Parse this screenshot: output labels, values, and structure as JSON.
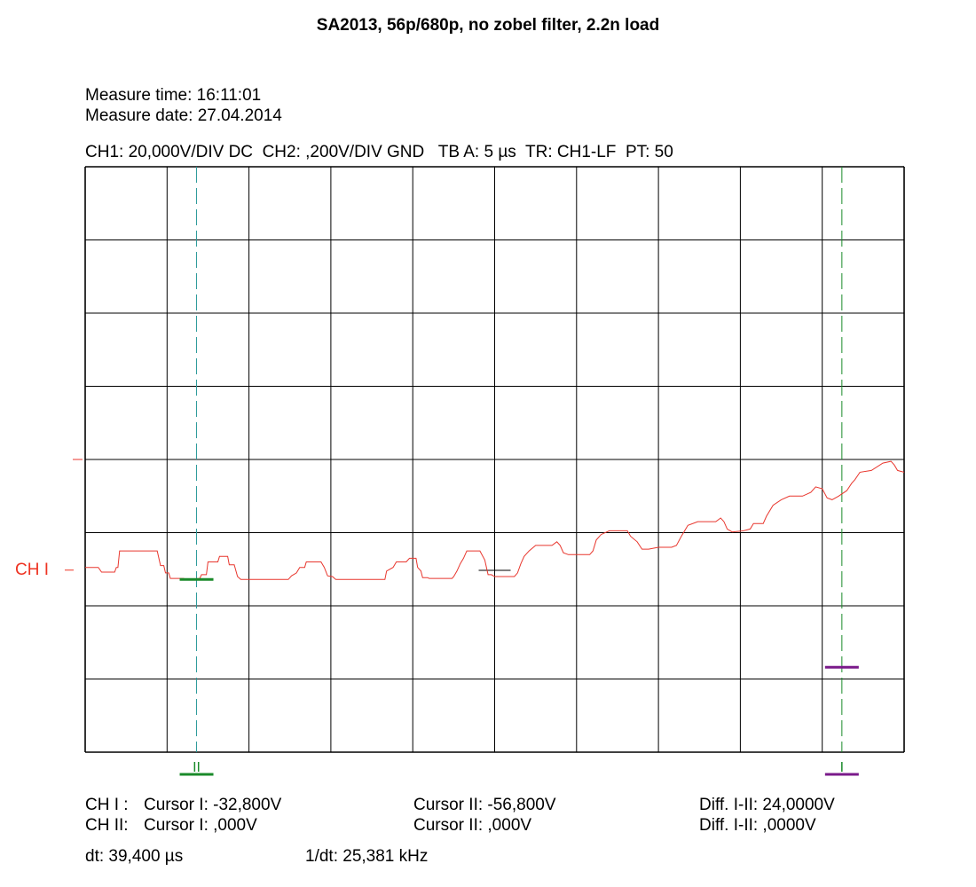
{
  "title": "SA2013, 56p/680p, no zobel filter, 2.2n load",
  "measure": {
    "time_label": "Measure time: 16:11:01",
    "date_label": "Measure date: 27.04.2014"
  },
  "settings_line": "CH1: 20,000V/DIV DC  CH2: ,200V/DIV GND   TB A: 5 µs  TR: CH1-LF  PT: 50",
  "channel_label": "CH I",
  "colors": {
    "trace": "#e8362d",
    "channel_label": "#ee3322",
    "cursor1": "#1a8a2a",
    "cursor1_line": "#2a9a9a",
    "cursor2": "#7a1a8a",
    "cursor2_line": "#1a8a2a",
    "grid": "#000000"
  },
  "cursor_marks": {
    "c1": "II",
    "c2": "I"
  },
  "readouts": {
    "ch1_prefix": "CH I :",
    "ch1_c1": "Cursor I: -32,800V",
    "ch1_c2": "Cursor II: -56,800V",
    "ch1_diff": "Diff. I-II: 24,0000V",
    "ch2_prefix": "CH II:",
    "ch2_c1": "Cursor I: ,000V",
    "ch2_c2": "Cursor II: ,000V",
    "ch2_diff": "Diff. I-II: ,0000V",
    "dt": "dt: 39,400 µs",
    "inv_dt": "1/dt: 25,381 kHz"
  },
  "chart_data": {
    "type": "line",
    "xlabel": "",
    "ylabel": "",
    "x_unit": "µs",
    "y_unit": "V",
    "xlim": [
      0,
      50
    ],
    "ylim": [
      -80,
      80
    ],
    "divisions": {
      "x": 10,
      "y": 8
    },
    "time_per_div_us": 5,
    "volts_per_div": 20,
    "grid": true,
    "channel_marker_y": -30,
    "center_marker_y": 0,
    "cursor1": {
      "x": 6.8,
      "level": -32.8
    },
    "cursor2": {
      "x": 46.2,
      "level": -56.8
    },
    "series": [
      {
        "points": [
          [
            0.0,
            -29.5
          ],
          [
            0.8,
            -29.5
          ],
          [
            1.0,
            -30.8
          ],
          [
            1.8,
            -30.8
          ],
          [
            1.9,
            -29.5
          ],
          [
            2.0,
            -29.5
          ],
          [
            2.1,
            -25.0
          ],
          [
            4.4,
            -25.0
          ],
          [
            4.6,
            -29.0
          ],
          [
            4.8,
            -29.0
          ],
          [
            4.9,
            -31.0
          ],
          [
            5.1,
            -31.0
          ],
          [
            5.2,
            -32.5
          ],
          [
            6.0,
            -32.5
          ],
          [
            6.2,
            -32.8
          ],
          [
            7.0,
            -32.5
          ],
          [
            7.1,
            -31.5
          ],
          [
            7.4,
            -31.5
          ],
          [
            7.5,
            -28.0
          ],
          [
            8.1,
            -28.0
          ],
          [
            8.2,
            -26.5
          ],
          [
            8.7,
            -26.5
          ],
          [
            8.8,
            -28.8
          ],
          [
            9.1,
            -28.8
          ],
          [
            9.3,
            -32.0
          ],
          [
            9.5,
            -32.8
          ],
          [
            12.4,
            -32.8
          ],
          [
            12.6,
            -31.8
          ],
          [
            12.9,
            -31.0
          ],
          [
            13.1,
            -29.5
          ],
          [
            13.4,
            -29.5
          ],
          [
            13.5,
            -28.0
          ],
          [
            14.4,
            -28.0
          ],
          [
            14.6,
            -29.5
          ],
          [
            14.8,
            -31.8
          ],
          [
            15.1,
            -32.0
          ],
          [
            15.3,
            -32.8
          ],
          [
            18.3,
            -32.8
          ],
          [
            18.4,
            -30.5
          ],
          [
            18.8,
            -29.5
          ],
          [
            19.0,
            -28.0
          ],
          [
            19.6,
            -28.0
          ],
          [
            19.8,
            -27.0
          ],
          [
            20.2,
            -27.0
          ],
          [
            20.3,
            -29.5
          ],
          [
            20.5,
            -30.5
          ],
          [
            20.6,
            -32.3
          ],
          [
            20.9,
            -32.3
          ],
          [
            21.0,
            -32.5
          ],
          [
            22.4,
            -32.5
          ],
          [
            22.5,
            -32.0
          ],
          [
            22.7,
            -30.5
          ],
          [
            22.9,
            -28.5
          ],
          [
            23.1,
            -27.0
          ],
          [
            23.3,
            -25.0
          ],
          [
            24.1,
            -25.0
          ],
          [
            24.4,
            -27.5
          ],
          [
            24.6,
            -31.5
          ],
          [
            24.8,
            -31.5
          ],
          [
            25.0,
            -32.0
          ],
          [
            26.2,
            -32.0
          ],
          [
            26.4,
            -31.0
          ],
          [
            26.6,
            -28.5
          ],
          [
            26.8,
            -26.5
          ],
          [
            27.1,
            -25.0
          ],
          [
            27.5,
            -23.5
          ],
          [
            28.5,
            -23.5
          ],
          [
            28.8,
            -22.5
          ],
          [
            29.0,
            -23.5
          ],
          [
            29.2,
            -25.5
          ],
          [
            29.5,
            -26.0
          ],
          [
            30.8,
            -26.0
          ],
          [
            31.0,
            -25.0
          ],
          [
            31.2,
            -22.0
          ],
          [
            31.5,
            -20.5
          ],
          [
            32.0,
            -19.5
          ],
          [
            33.1,
            -19.5
          ],
          [
            33.3,
            -21.0
          ],
          [
            33.7,
            -22.5
          ],
          [
            34.0,
            -24.5
          ],
          [
            34.4,
            -24.5
          ],
          [
            35.0,
            -24.0
          ],
          [
            35.8,
            -24.0
          ],
          [
            36.1,
            -23.5
          ],
          [
            36.4,
            -21.0
          ],
          [
            36.8,
            -18.0
          ],
          [
            37.4,
            -17.0
          ],
          [
            38.5,
            -17.0
          ],
          [
            38.8,
            -16.0
          ],
          [
            39.0,
            -17.0
          ],
          [
            39.2,
            -19.0
          ],
          [
            39.5,
            -19.8
          ],
          [
            40.2,
            -19.5
          ],
          [
            40.6,
            -19.0
          ],
          [
            40.8,
            -17.5
          ],
          [
            41.4,
            -17.5
          ],
          [
            41.6,
            -15.5
          ],
          [
            42.0,
            -12.5
          ],
          [
            42.5,
            -11.0
          ],
          [
            43.0,
            -10.0
          ],
          [
            43.8,
            -10.0
          ],
          [
            44.3,
            -9.0
          ],
          [
            44.6,
            -7.5
          ],
          [
            45.0,
            -8.0
          ],
          [
            45.3,
            -10.5
          ],
          [
            45.6,
            -11.0
          ],
          [
            46.0,
            -10.0
          ],
          [
            46.5,
            -8.5
          ],
          [
            46.8,
            -6.5
          ],
          [
            47.0,
            -5.5
          ],
          [
            47.3,
            -3.5
          ],
          [
            48.0,
            -3.0
          ],
          [
            48.7,
            -1.0
          ],
          [
            49.2,
            -0.5
          ],
          [
            49.4,
            -1.5
          ],
          [
            49.6,
            -3.0
          ],
          [
            50.0,
            -3.5
          ]
        ]
      }
    ]
  }
}
